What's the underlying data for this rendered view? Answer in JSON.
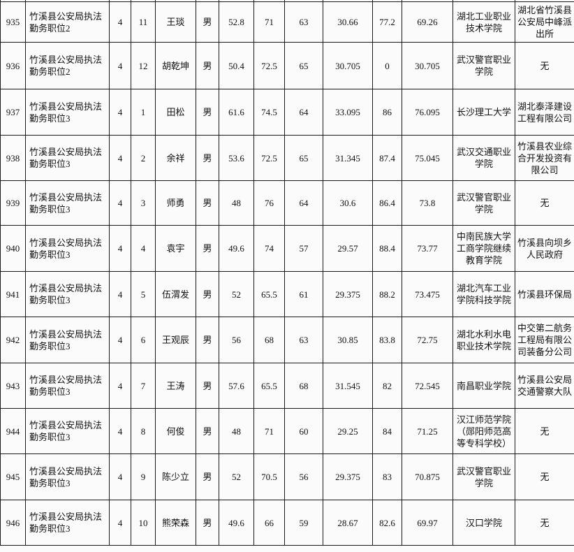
{
  "table": {
    "rows": [
      [
        "935",
        "竹溪县公安局执法勤务职位2",
        "4",
        "11",
        "王琰",
        "男",
        "52.8",
        "71",
        "63",
        "30.66",
        "77.2",
        "69.26",
        "湖北工业职业技术学院",
        "湖北省竹溪县公安局中峰派出所"
      ],
      [
        "936",
        "竹溪县公安局执法勤务职位2",
        "4",
        "12",
        "胡乾坤",
        "男",
        "50.4",
        "72.5",
        "65",
        "30.705",
        "0",
        "30.705",
        "武汉警官职业学院",
        "无"
      ],
      [
        "937",
        "竹溪县公安局执法勤务职位3",
        "4",
        "1",
        "田松",
        "男",
        "61.6",
        "74.5",
        "64",
        "33.095",
        "86",
        "76.095",
        "长沙理工大学",
        "湖北泰泽建设工程有限公司"
      ],
      [
        "938",
        "竹溪县公安局执法勤务职位3",
        "4",
        "2",
        "余祥",
        "男",
        "53.6",
        "72.5",
        "65",
        "31.345",
        "87.4",
        "75.045",
        "武汉交通职业学院",
        "竹溪县农业综合开发投资有限公司"
      ],
      [
        "939",
        "竹溪县公安局执法勤务职位3",
        "4",
        "3",
        "师勇",
        "男",
        "48",
        "76",
        "64",
        "30.6",
        "86.4",
        "73.8",
        "武汉警官职业学院",
        "无"
      ],
      [
        "940",
        "竹溪县公安局执法勤务职位3",
        "4",
        "4",
        "袁宇",
        "男",
        "49.6",
        "74",
        "57",
        "29.57",
        "88.4",
        "73.77",
        "中南民族大学工商学院继续教育学院",
        "竹溪县向坝乡人民政府"
      ],
      [
        "941",
        "竹溪县公安局执法勤务职位3",
        "4",
        "5",
        "伍渭发",
        "男",
        "52",
        "65.5",
        "61",
        "29.375",
        "88.2",
        "73.475",
        "湖北汽车工业学院科技学院",
        "竹溪县环保局"
      ],
      [
        "942",
        "竹溪县公安局执法勤务职位3",
        "4",
        "6",
        "王观辰",
        "男",
        "56",
        "68",
        "63",
        "30.85",
        "83.8",
        "72.75",
        "湖北水利水电职业技术学院",
        "中交第二航务工程局有限公司装备分公司"
      ],
      [
        "943",
        "竹溪县公安局执法勤务职位3",
        "4",
        "7",
        "王涛",
        "男",
        "57.6",
        "65.5",
        "68",
        "31.545",
        "82",
        "72.545",
        "南昌职业学院",
        "竹溪县公安局交通警察大队"
      ],
      [
        "944",
        "竹溪县公安局执法勤务职位3",
        "4",
        "8",
        "何俊",
        "男",
        "48",
        "71",
        "60",
        "29.25",
        "84",
        "71.25",
        "汉江师范学院（郧阳师范高等专科学校）",
        "无"
      ],
      [
        "945",
        "竹溪县公安局执法勤务职位3",
        "4",
        "9",
        "陈少立",
        "男",
        "52",
        "70.5",
        "56",
        "29.375",
        "83",
        "70.875",
        "武汉警官职业学院",
        "无"
      ],
      [
        "946",
        "竹溪县公安局执法勤务职位3",
        "4",
        "10",
        "熊荣森",
        "男",
        "49.6",
        "66",
        "59",
        "28.67",
        "82.6",
        "69.97",
        "汉口学院",
        "无"
      ]
    ]
  }
}
